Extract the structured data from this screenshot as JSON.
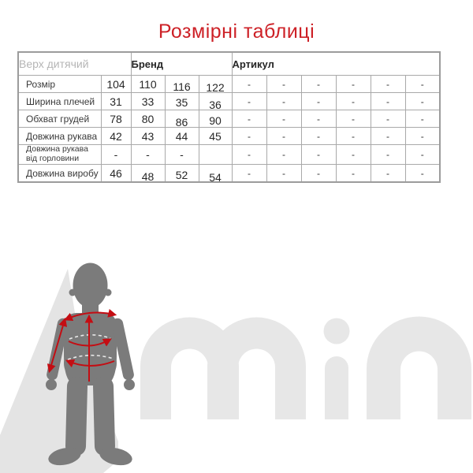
{
  "title": "Розмірні таблиці",
  "colors": {
    "accent_red": "#cd2127",
    "measure_red": "#c40d13",
    "silhouette_gray": "#7b7b7b",
    "watermark_gray": "#e7e7e7"
  },
  "size_table": {
    "group_header": "Верх дитячий",
    "brand_header": "Бренд",
    "article_header": "Артикул",
    "rows": [
      {
        "label": "Розмір",
        "values": [
          "104",
          "110",
          "116",
          "122"
        ],
        "article_values": [
          "-",
          "-",
          "-",
          "-",
          "-",
          "-"
        ]
      },
      {
        "label": "Ширина плечей",
        "values": [
          "31",
          "33",
          "35",
          "36"
        ],
        "article_values": [
          "-",
          "-",
          "-",
          "-",
          "-",
          "-"
        ]
      },
      {
        "label": "Обхват грудей",
        "values": [
          "78",
          "80",
          "86",
          "90"
        ],
        "article_values": [
          "-",
          "-",
          "-",
          "-",
          "-",
          "-"
        ]
      },
      {
        "label": "Довжина рукава",
        "values": [
          "42",
          "43",
          "44",
          "45"
        ],
        "article_values": [
          "-",
          "-",
          "-",
          "-",
          "-",
          "-"
        ]
      },
      {
        "label": "Довжина рукава від горловини",
        "values": [
          "-",
          "-",
          "-",
          ""
        ],
        "article_values": [
          "-",
          "-",
          "-",
          "-",
          "-",
          "-"
        ]
      },
      {
        "label": "Довжина виробу",
        "values": [
          "46",
          "48",
          "52",
          "54"
        ],
        "article_values": [
          "-",
          "-",
          "-",
          "-",
          "-",
          "-"
        ]
      }
    ]
  },
  "watermark": {
    "text": "min"
  }
}
